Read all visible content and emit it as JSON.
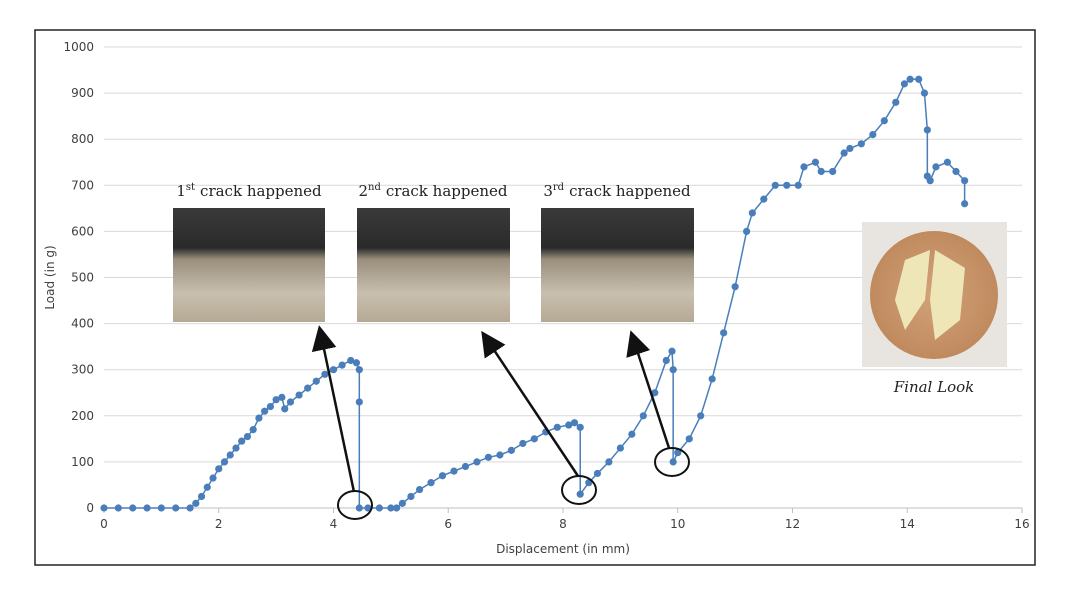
{
  "chart_data": {
    "type": "line",
    "x_label": "Displacement (in mm)",
    "y_label": "Load (in g)",
    "x": [
      0,
      0.25,
      0.5,
      0.75,
      1.0,
      1.25,
      1.5,
      1.6,
      1.7,
      1.8,
      1.9,
      2.0,
      2.1,
      2.2,
      2.3,
      2.4,
      2.5,
      2.6,
      2.7,
      2.8,
      2.9,
      3.0,
      3.1,
      3.15,
      3.25,
      3.4,
      3.55,
      3.7,
      3.85,
      4.0,
      4.15,
      4.3,
      4.4,
      4.45,
      4.45,
      4.45,
      4.6,
      4.8,
      5.0,
      5.1,
      5.2,
      5.35,
      5.5,
      5.7,
      5.9,
      6.1,
      6.3,
      6.5,
      6.7,
      6.9,
      7.1,
      7.3,
      7.5,
      7.7,
      7.9,
      8.1,
      8.2,
      8.3,
      8.3,
      8.45,
      8.6,
      8.8,
      9.0,
      9.2,
      9.4,
      9.6,
      9.8,
      9.9,
      9.92,
      9.92,
      10.0,
      10.2,
      10.4,
      10.6,
      10.8,
      11.0,
      11.2,
      11.3,
      11.5,
      11.7,
      11.9,
      12.1,
      12.2,
      12.4,
      12.5,
      12.7,
      12.9,
      13.0,
      13.2,
      13.4,
      13.6,
      13.8,
      13.95,
      14.05,
      14.2,
      14.3,
      14.35,
      14.35,
      14.4,
      14.5,
      14.7,
      14.85,
      15.0,
      15.0
    ],
    "series": [
      {
        "name": "Load",
        "color": "#4a7ebb",
        "values": [
          0,
          0,
          0,
          0,
          0,
          0,
          0,
          10,
          25,
          45,
          65,
          85,
          100,
          115,
          130,
          145,
          155,
          170,
          195,
          210,
          220,
          235,
          240,
          215,
          230,
          245,
          260,
          275,
          290,
          300,
          310,
          320,
          315,
          300,
          230,
          0,
          0,
          0,
          0,
          0,
          10,
          25,
          40,
          55,
          70,
          80,
          90,
          100,
          110,
          115,
          125,
          140,
          150,
          165,
          175,
          180,
          185,
          175,
          30,
          55,
          75,
          100,
          130,
          160,
          200,
          250,
          320,
          340,
          300,
          100,
          120,
          150,
          200,
          280,
          380,
          480,
          600,
          640,
          670,
          700,
          700,
          700,
          740,
          750,
          730,
          730,
          770,
          780,
          790,
          810,
          840,
          880,
          920,
          930,
          930,
          900,
          820,
          720,
          710,
          740,
          750,
          730,
          710,
          660
        ]
      }
    ],
    "xlim": [
      0,
      16
    ],
    "xticks": [
      0,
      2,
      4,
      6,
      8,
      10,
      12,
      14,
      16
    ],
    "ylim": [
      0,
      1000
    ],
    "yticks": [
      0,
      100,
      200,
      300,
      400,
      500,
      600,
      700,
      800,
      900,
      1000
    ],
    "grid": true,
    "annotations": [
      {
        "ordinal": "1",
        "suffix": "st",
        "text": "crack happened"
      },
      {
        "ordinal": "2",
        "suffix": "nd",
        "text": "crack happened"
      },
      {
        "ordinal": "3",
        "suffix": "rd",
        "text": "crack happened"
      }
    ],
    "final_caption": "Final Look"
  }
}
